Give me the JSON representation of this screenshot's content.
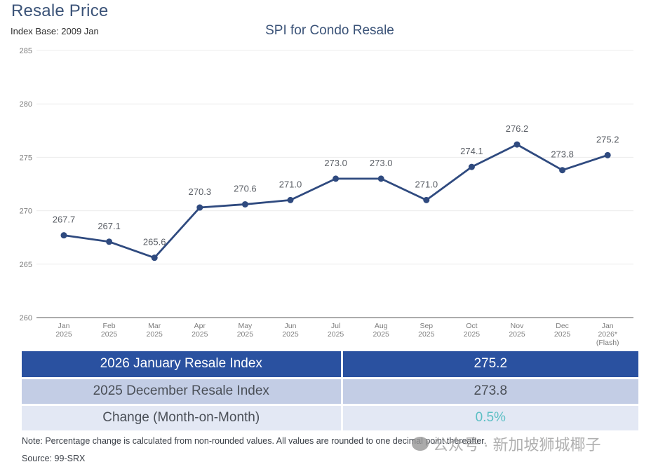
{
  "header": {
    "title": "Resale Price",
    "index_base": "Index Base: 2009 Jan"
  },
  "chart_data": {
    "type": "line",
    "title": "SPI for Condo Resale",
    "xlabel": "",
    "ylabel": "",
    "ylim": [
      260,
      285
    ],
    "yticks": [
      260,
      265,
      270,
      275,
      280,
      285
    ],
    "grid": true,
    "categories": [
      [
        "Jan",
        "2025"
      ],
      [
        "Feb",
        "2025"
      ],
      [
        "Mar",
        "2025"
      ],
      [
        "Apr",
        "2025"
      ],
      [
        "May",
        "2025"
      ],
      [
        "Jun",
        "2025"
      ],
      [
        "Jul",
        "2025"
      ],
      [
        "Aug",
        "2025"
      ],
      [
        "Sep",
        "2025"
      ],
      [
        "Oct",
        "2025"
      ],
      [
        "Nov",
        "2025"
      ],
      [
        "Dec",
        "2025"
      ],
      [
        "Jan",
        "2026*",
        "(Flash)"
      ]
    ],
    "series": [
      {
        "name": "SPI for Condo Resale",
        "color": "#2f4a7f",
        "values": [
          267.7,
          267.1,
          265.6,
          270.3,
          270.6,
          271.0,
          273.0,
          273.0,
          271.0,
          274.1,
          276.2,
          273.8,
          275.2
        ],
        "labels": [
          "267.7",
          "267.1",
          "265.6",
          "270.3",
          "270.6",
          "271.0",
          "273.0",
          "273.0",
          "271.0",
          "274.1",
          "276.2",
          "273.8",
          "275.2"
        ]
      }
    ]
  },
  "summary_table": {
    "rows": [
      {
        "label": "2026 January Resale Index",
        "value": "275.2"
      },
      {
        "label": "2025 December Resale Index",
        "value": "273.8"
      },
      {
        "label": "Change (Month-on-Month)",
        "value": "0.5%"
      }
    ],
    "change_color": "#5bbfc4"
  },
  "footer": {
    "note": "Note: Percentage change is calculated from non-rounded values.  All values are rounded to one decimal point thereafter.",
    "source": "Source: 99-SRX",
    "watermark": "公众号 · 新加坡狮城椰子"
  }
}
